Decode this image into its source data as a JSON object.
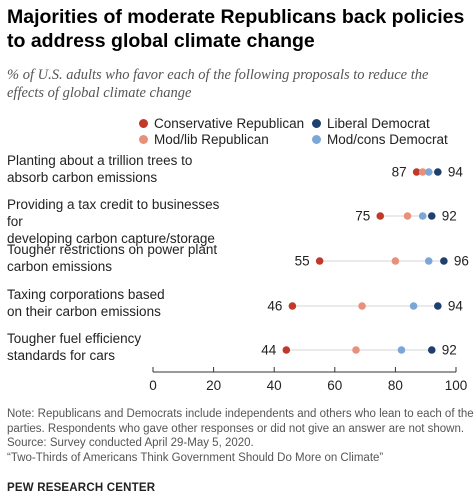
{
  "title": "Majorities of moderate Republicans back policies to address global climate change",
  "subtitle": "% of U.S. adults who favor each of the following proposals to reduce the effects of global climate change",
  "notes": [
    "Note: Republicans and Democrats include independents and others who lean to each of the",
    "parties. Respondents who gave other responses or did not give an answer are not shown.",
    "Source: Survey conducted April 29-May 5, 2020.",
    "“Two-Thirds of Americans Think Government Should Do More on Climate”"
  ],
  "org": "PEW RESEARCH CENTER",
  "colors": {
    "conservative_republican": "#c0392b",
    "mod_lib_republican": "#e8907a",
    "liberal_democrat": "#1f3f6e",
    "mod_cons_democrat": "#7ba6d8"
  },
  "chart_data": {
    "type": "scatter",
    "categories": [
      "Planting about a trillion trees to absorb carbon emissions",
      "Providing a tax credit to businesses for developing carbon capture/storage",
      "Tougher restrictions on power plant carbon emissions",
      "Taxing corporations based on their carbon emissions",
      "Tougher fuel efficiency standards for cars"
    ],
    "category_lines": [
      [
        "Planting about a trillion trees to",
        "absorb carbon emissions"
      ],
      [
        "Providing a tax credit to businesses for",
        "developing carbon capture/storage"
      ],
      [
        "Tougher restrictions on power plant",
        "carbon emissions"
      ],
      [
        "Taxing corporations based",
        "on their carbon emissions"
      ],
      [
        "Tougher fuel efficiency",
        "standards for cars"
      ]
    ],
    "series": [
      {
        "name": "Conservative Republican",
        "color": "#c0392b",
        "values": [
          87,
          75,
          55,
          46,
          44
        ]
      },
      {
        "name": "Mod/lib Republican",
        "color": "#e8907a",
        "values": [
          89,
          84,
          80,
          69,
          67
        ]
      },
      {
        "name": "Mod/cons Democrat",
        "color": "#7ba6d8",
        "values": [
          91,
          89,
          91,
          86,
          82
        ]
      },
      {
        "name": "Liberal Democrat",
        "color": "#1f3f6e",
        "values": [
          94,
          92,
          96,
          94,
          92
        ]
      }
    ],
    "legend": [
      {
        "name": "Conservative Republican",
        "color": "#c0392b"
      },
      {
        "name": "Liberal Democrat",
        "color": "#1f3f6e"
      },
      {
        "name": "Mod/lib Republican",
        "color": "#e8907a"
      },
      {
        "name": "Mod/cons Democrat",
        "color": "#7ba6d8"
      }
    ],
    "labeled_values": [
      {
        "left": "87",
        "right": "94"
      },
      {
        "left": "75",
        "right": "92"
      },
      {
        "left": "55",
        "right": "96"
      },
      {
        "left": "46",
        "right": "94"
      },
      {
        "left": "44",
        "right": "92"
      }
    ],
    "xlim": [
      0,
      100
    ],
    "xticks": [
      "0",
      "20",
      "40",
      "60",
      "80",
      "100"
    ],
    "xtick_values": [
      0,
      20,
      40,
      60,
      80,
      100
    ],
    "legend_position": "top-left",
    "grid": false
  }
}
